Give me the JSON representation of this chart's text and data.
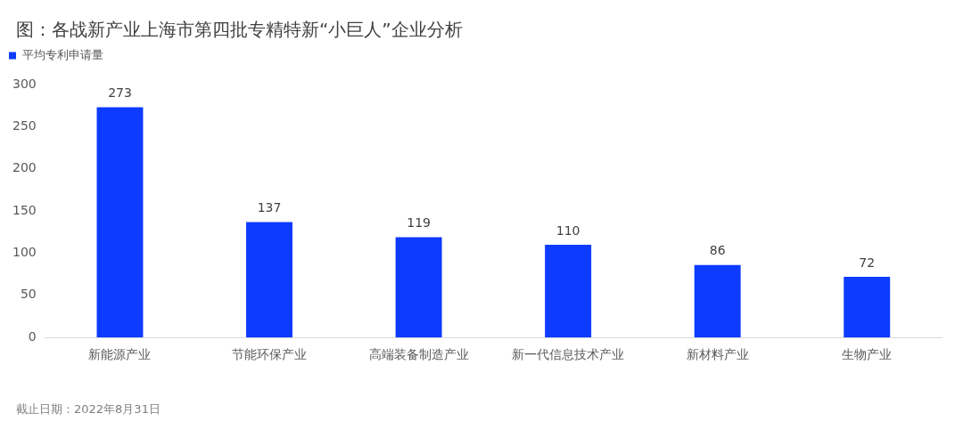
{
  "chart_data": {
    "type": "bar",
    "title": "图：各战新产业上海市第四批专精特新“小巨人”企业分析",
    "categories": [
      "新能源产业",
      "节能环保产业",
      "高端装备制造产业",
      "新一代信息技术产业",
      "新材料产业",
      "生物产业"
    ],
    "series": [
      {
        "name": "平均专利申请量",
        "color": "#0d3bff",
        "values": [
          273,
          137,
          119,
          110,
          86,
          72
        ]
      }
    ],
    "ylim": [
      0,
      300
    ],
    "yticks": [
      0,
      50,
      100,
      150,
      200,
      250,
      300
    ],
    "legend": "top left",
    "data_labels": true,
    "annotations": [
      "截止日期：2022年8月31日"
    ]
  }
}
